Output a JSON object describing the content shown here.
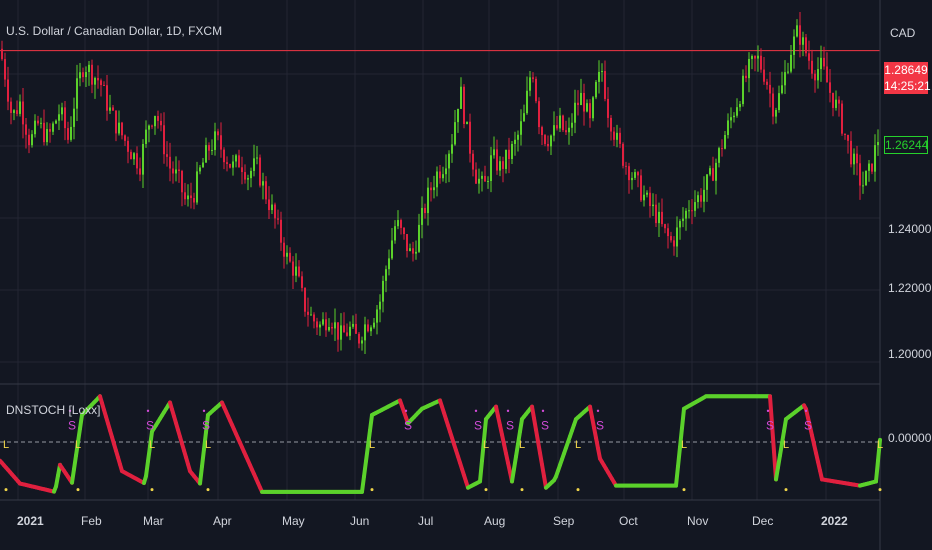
{
  "header": {
    "title": "U.S. Dollar / Canadian Dollar, 1D, FXCM",
    "currency": "CAD"
  },
  "indicator": {
    "name": "DNSTOCH [Loxx]",
    "zero_label": "0.00000",
    "buy_marker": "L",
    "sell_marker": "S"
  },
  "price_axis": {
    "ticks": [
      "1.24000",
      "1.22000",
      "1.20000"
    ]
  },
  "price_tags": {
    "last": {
      "value": "1.28649",
      "timer": "14:25:21",
      "color": "#f23645"
    },
    "current": {
      "value": "1.26244",
      "color": "#26d12c"
    }
  },
  "time_axis": {
    "labels": [
      "2021",
      "Feb",
      "Mar",
      "Apr",
      "May",
      "Jun",
      "Jul",
      "Aug",
      "Sep",
      "Oct",
      "Nov",
      "Dec",
      "2022"
    ]
  },
  "colors": {
    "up": "#5bd12b",
    "down": "#e0203f",
    "marker_L": "#f0d54a",
    "marker_S": "#d24bd8",
    "grid": "#232633",
    "background": "#131722"
  },
  "chart_data": {
    "type": "candlestick",
    "price_ylim": [
      1.195,
      1.295
    ],
    "reference_price": 1.28649,
    "ohlc_path_points": [
      [
        0,
        1.287
      ],
      [
        5,
        1.28
      ],
      [
        12,
        1.268
      ],
      [
        20,
        1.272
      ],
      [
        30,
        1.261
      ],
      [
        38,
        1.266
      ],
      [
        48,
        1.262
      ],
      [
        60,
        1.27
      ],
      [
        68,
        1.262
      ],
      [
        76,
        1.275
      ],
      [
        84,
        1.283
      ],
      [
        92,
        1.28
      ],
      [
        100,
        1.278
      ],
      [
        108,
        1.271
      ],
      [
        116,
        1.266
      ],
      [
        124,
        1.262
      ],
      [
        132,
        1.258
      ],
      [
        140,
        1.255
      ],
      [
        148,
        1.266
      ],
      [
        156,
        1.27
      ],
      [
        162,
        1.262
      ],
      [
        170,
        1.254
      ],
      [
        178,
        1.251
      ],
      [
        186,
        1.244
      ],
      [
        194,
        1.247
      ],
      [
        200,
        1.253
      ],
      [
        208,
        1.259
      ],
      [
        216,
        1.262
      ],
      [
        224,
        1.258
      ],
      [
        232,
        1.254
      ],
      [
        240,
        1.256
      ],
      [
        248,
        1.252
      ],
      [
        256,
        1.255
      ],
      [
        264,
        1.248
      ],
      [
        272,
        1.242
      ],
      [
        280,
        1.235
      ],
      [
        288,
        1.228
      ],
      [
        296,
        1.225
      ],
      [
        304,
        1.216
      ],
      [
        312,
        1.212
      ],
      [
        320,
        1.21
      ],
      [
        330,
        1.213
      ],
      [
        340,
        1.207
      ],
      [
        350,
        1.209
      ],
      [
        358,
        1.206
      ],
      [
        364,
        1.21
      ],
      [
        372,
        1.212
      ],
      [
        380,
        1.217
      ],
      [
        388,
        1.229
      ],
      [
        396,
        1.239
      ],
      [
        404,
        1.234
      ],
      [
        412,
        1.229
      ],
      [
        420,
        1.238
      ],
      [
        428,
        1.246
      ],
      [
        436,
        1.252
      ],
      [
        444,
        1.255
      ],
      [
        452,
        1.262
      ],
      [
        460,
        1.276
      ],
      [
        468,
        1.262
      ],
      [
        476,
        1.252
      ],
      [
        484,
        1.248
      ],
      [
        492,
        1.257
      ],
      [
        500,
        1.254
      ],
      [
        508,
        1.257
      ],
      [
        516,
        1.261
      ],
      [
        524,
        1.268
      ],
      [
        532,
        1.283
      ],
      [
        540,
        1.265
      ],
      [
        546,
        1.262
      ],
      [
        552,
        1.263
      ],
      [
        560,
        1.266
      ],
      [
        568,
        1.262
      ],
      [
        574,
        1.27
      ],
      [
        582,
        1.274
      ],
      [
        590,
        1.266
      ],
      [
        596,
        1.276
      ],
      [
        602,
        1.281
      ],
      [
        608,
        1.27
      ],
      [
        616,
        1.262
      ],
      [
        624,
        1.256
      ],
      [
        632,
        1.252
      ],
      [
        640,
        1.248
      ],
      [
        648,
        1.244
      ],
      [
        656,
        1.241
      ],
      [
        664,
        1.236
      ],
      [
        672,
        1.233
      ],
      [
        680,
        1.238
      ],
      [
        690,
        1.244
      ],
      [
        700,
        1.246
      ],
      [
        710,
        1.251
      ],
      [
        718,
        1.257
      ],
      [
        726,
        1.264
      ],
      [
        734,
        1.27
      ],
      [
        742,
        1.276
      ],
      [
        750,
        1.282
      ],
      [
        758,
        1.284
      ],
      [
        766,
        1.279
      ],
      [
        774,
        1.27
      ],
      [
        782,
        1.276
      ],
      [
        790,
        1.286
      ],
      [
        798,
        1.292
      ],
      [
        806,
        1.286
      ],
      [
        814,
        1.281
      ],
      [
        822,
        1.282
      ],
      [
        830,
        1.275
      ],
      [
        838,
        1.27
      ],
      [
        846,
        1.262
      ],
      [
        854,
        1.255
      ],
      [
        862,
        1.249
      ],
      [
        870,
        1.253
      ],
      [
        878,
        1.262
      ]
    ],
    "indicator_ylim": [
      -1.3,
      1.3
    ],
    "indicator_path_points": [
      [
        0,
        -0.45
      ],
      [
        20,
        -1.0
      ],
      [
        55,
        -1.2
      ],
      [
        60,
        -0.55
      ],
      [
        72,
        -0.98
      ],
      [
        82,
        0.65
      ],
      [
        100,
        1.1
      ],
      [
        122,
        -0.7
      ],
      [
        145,
        -1.0
      ],
      [
        152,
        0.25
      ],
      [
        170,
        0.95
      ],
      [
        190,
        -0.7
      ],
      [
        200,
        -1.0
      ],
      [
        208,
        0.65
      ],
      [
        222,
        0.95
      ],
      [
        262,
        -1.2
      ],
      [
        362,
        -1.2
      ],
      [
        372,
        0.65
      ],
      [
        400,
        1.0
      ],
      [
        408,
        0.45
      ],
      [
        422,
        0.8
      ],
      [
        440,
        1.0
      ],
      [
        468,
        -1.1
      ],
      [
        480,
        -0.95
      ],
      [
        486,
        0.55
      ],
      [
        496,
        0.85
      ],
      [
        512,
        -0.95
      ],
      [
        522,
        0.55
      ],
      [
        532,
        0.85
      ],
      [
        546,
        -1.1
      ],
      [
        555,
        -0.9
      ],
      [
        576,
        0.55
      ],
      [
        590,
        0.85
      ],
      [
        600,
        -0.4
      ],
      [
        616,
        -1.05
      ],
      [
        676,
        -1.05
      ],
      [
        684,
        0.8
      ],
      [
        706,
        1.1
      ],
      [
        770,
        1.1
      ],
      [
        776,
        -0.9
      ],
      [
        786,
        0.55
      ],
      [
        805,
        0.9
      ],
      [
        822,
        -0.9
      ],
      [
        860,
        -1.05
      ],
      [
        876,
        -0.95
      ],
      [
        882,
        0.55
      ]
    ],
    "buy_markers_x": [
      6,
      78,
      152,
      208,
      372,
      486,
      522,
      578,
      684,
      786,
      880
    ],
    "sell_markers_x": [
      72,
      150,
      206,
      408,
      478,
      510,
      545,
      600,
      770,
      808
    ]
  }
}
